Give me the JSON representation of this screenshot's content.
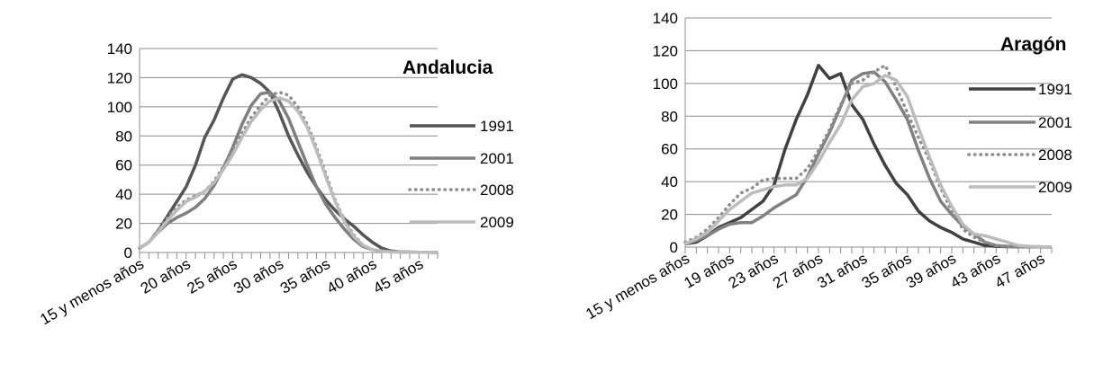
{
  "chart_data": [
    {
      "type": "line",
      "title": "Andalucia",
      "ylim": [
        0,
        140
      ],
      "yticks": [
        0,
        20,
        40,
        60,
        80,
        100,
        120,
        140
      ],
      "xtick_labels": [
        "15 y menos años",
        "20 años",
        "25 años",
        "30 años",
        "35 años",
        "40 años",
        "45 años"
      ],
      "legend_position": "right",
      "grid": "horizontal",
      "series": [
        {
          "name": "1991",
          "color": "#555555",
          "dash": "solid",
          "values": [
            3,
            7,
            15,
            25,
            35,
            45,
            60,
            79,
            91,
            106,
            119,
            122,
            120,
            116,
            110,
            96,
            80,
            67,
            55,
            45,
            36,
            29,
            23,
            18,
            12,
            7,
            3,
            1,
            0.5,
            0.3,
            0.2,
            0.1,
            0
          ]
        },
        {
          "name": "2001",
          "color": "#7f7f7f",
          "dash": "solid",
          "values": [
            3,
            7,
            14,
            20,
            24,
            27,
            31,
            37,
            46,
            58,
            72,
            88,
            101,
            109,
            110,
            104,
            92,
            76,
            60,
            45,
            33,
            24,
            16,
            9,
            4,
            2,
            1,
            0.5,
            0.3,
            0.2,
            0.1,
            0.1,
            0
          ]
        },
        {
          "name": "2008",
          "color": "#8e8e8e",
          "dash": "dotted",
          "values": [
            3,
            7,
            15,
            24,
            31,
            36,
            39,
            42,
            49,
            59,
            70,
            82,
            93,
            101,
            108,
            110,
            108,
            100,
            88,
            72,
            54,
            36,
            22,
            12,
            5,
            2,
            1,
            0.5,
            0.3,
            0.2,
            0.1,
            0.1,
            0
          ]
        },
        {
          "name": "2009",
          "color": "#bcbcbc",
          "dash": "solid",
          "values": [
            3,
            7,
            14,
            22,
            29,
            35,
            38,
            42,
            48,
            57,
            67,
            79,
            90,
            98,
            104,
            106,
            104,
            97,
            86,
            70,
            52,
            35,
            21,
            11,
            5,
            2,
            1,
            0.5,
            0.3,
            0.2,
            0.1,
            0.1,
            0
          ]
        }
      ]
    },
    {
      "type": "line",
      "title": "Aragón",
      "ylim": [
        0,
        140
      ],
      "yticks": [
        0,
        20,
        40,
        60,
        80,
        100,
        120,
        140
      ],
      "xtick_labels": [
        "15 y menos años",
        "19 años",
        "23 años",
        "27 años",
        "31 años",
        "35 años",
        "39 años",
        "43 años",
        "47 años"
      ],
      "legend_position": "right",
      "grid": "horizontal",
      "series": [
        {
          "name": "1991",
          "color": "#404040",
          "dash": "solid",
          "values": [
            2,
            3,
            7,
            12,
            15,
            18,
            23,
            28,
            38,
            60,
            78,
            93,
            111,
            103,
            106,
            87,
            78,
            63,
            50,
            39,
            32,
            22,
            16,
            12,
            9,
            5,
            3,
            1,
            0.5,
            0.3,
            0.2,
            0.1,
            0.1,
            0
          ]
        },
        {
          "name": "2001",
          "color": "#808080",
          "dash": "solid",
          "values": [
            2,
            4,
            7,
            11,
            14,
            15,
            15,
            19,
            24,
            28,
            32,
            43,
            57,
            70,
            86,
            102,
            106,
            107,
            101,
            90,
            78,
            59,
            42,
            28,
            20,
            13,
            8,
            3,
            1,
            0.5,
            0.3,
            0.2,
            0.1,
            0
          ]
        },
        {
          "name": "2008",
          "color": "#8e8e8e",
          "dash": "dotted",
          "values": [
            3,
            6,
            11,
            18,
            26,
            33,
            36,
            41,
            42,
            42,
            42,
            48,
            59,
            72,
            87,
            100,
            102,
            107,
            111,
            98,
            82,
            67,
            53,
            36,
            22,
            11,
            6,
            3,
            1,
            0.5,
            0.3,
            0.2,
            0.1,
            0
          ]
        },
        {
          "name": "2009",
          "color": "#bcbcbc",
          "dash": "solid",
          "values": [
            2,
            5,
            9,
            16,
            23,
            28,
            33,
            35,
            37,
            38,
            38,
            42,
            52,
            64,
            75,
            90,
            98,
            100,
            105,
            102,
            92,
            73,
            55,
            38,
            25,
            14,
            8,
            7,
            5,
            3,
            1,
            0.5,
            0.3,
            0
          ]
        }
      ]
    }
  ]
}
